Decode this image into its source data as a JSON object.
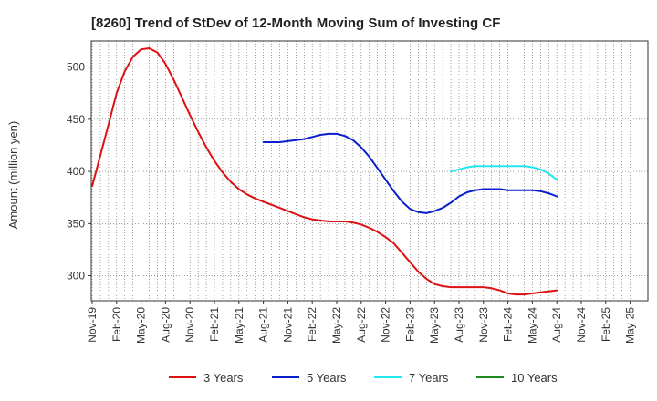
{
  "chart_data": {
    "type": "line",
    "title": "[8260]  Trend of StDev of 12-Month Moving Sum of Investing CF",
    "xlabel": "",
    "ylabel": "Amount (million yen)",
    "ylim": [
      276,
      525
    ],
    "yticks": [
      300,
      350,
      400,
      450,
      500
    ],
    "grid": true,
    "legend_position": "bottom",
    "categories": [
      "Nov-19",
      "Feb-20",
      "May-20",
      "Aug-20",
      "Nov-20",
      "Feb-21",
      "May-21",
      "Aug-21",
      "Nov-21",
      "Feb-22",
      "May-22",
      "Aug-22",
      "Nov-22",
      "Feb-23",
      "May-23",
      "Aug-23",
      "Nov-23",
      "Feb-24",
      "May-24",
      "Aug-24",
      "Nov-24",
      "Feb-25",
      "May-25"
    ],
    "series": [
      {
        "name": "3 Years",
        "color": "#dd1111",
        "points": [
          [
            "2019-11",
            386
          ],
          [
            "2019-12",
            415
          ],
          [
            "2020-01",
            445
          ],
          [
            "2020-02",
            475
          ],
          [
            "2020-03",
            496
          ],
          [
            "2020-04",
            510
          ],
          [
            "2020-05",
            517
          ],
          [
            "2020-06",
            518
          ],
          [
            "2020-07",
            514
          ],
          [
            "2020-08",
            503
          ],
          [
            "2020-09",
            488
          ],
          [
            "2020-10",
            471
          ],
          [
            "2020-11",
            454
          ],
          [
            "2020-12",
            438
          ],
          [
            "2021-01",
            423
          ],
          [
            "2021-02",
            410
          ],
          [
            "2021-03",
            399
          ],
          [
            "2021-04",
            390
          ],
          [
            "2021-05",
            383
          ],
          [
            "2021-06",
            378
          ],
          [
            "2021-07",
            374
          ],
          [
            "2021-08",
            371
          ],
          [
            "2021-09",
            368
          ],
          [
            "2021-10",
            365
          ],
          [
            "2021-11",
            362
          ],
          [
            "2021-12",
            359
          ],
          [
            "2022-01",
            356
          ],
          [
            "2022-02",
            354
          ],
          [
            "2022-03",
            353
          ],
          [
            "2022-04",
            352
          ],
          [
            "2022-05",
            352
          ],
          [
            "2022-06",
            352
          ],
          [
            "2022-07",
            351
          ],
          [
            "2022-08",
            349
          ],
          [
            "2022-09",
            346
          ],
          [
            "2022-10",
            342
          ],
          [
            "2022-11",
            337
          ],
          [
            "2022-12",
            331
          ],
          [
            "2023-01",
            322
          ],
          [
            "2023-02",
            313
          ],
          [
            "2023-03",
            304
          ],
          [
            "2023-04",
            297
          ],
          [
            "2023-05",
            292
          ],
          [
            "2023-06",
            290
          ],
          [
            "2023-07",
            289
          ],
          [
            "2023-08",
            289
          ],
          [
            "2023-09",
            289
          ],
          [
            "2023-10",
            289
          ],
          [
            "2023-11",
            289
          ],
          [
            "2023-12",
            288
          ],
          [
            "2024-01",
            286
          ],
          [
            "2024-02",
            283
          ],
          [
            "2024-03",
            282
          ],
          [
            "2024-04",
            282
          ],
          [
            "2024-05",
            283
          ],
          [
            "2024-06",
            284
          ],
          [
            "2024-07",
            285
          ],
          [
            "2024-08",
            286
          ]
        ]
      },
      {
        "name": "5 Years",
        "color": "#0a1fcc",
        "points": [
          [
            "2021-08",
            428
          ],
          [
            "2021-09",
            428
          ],
          [
            "2021-10",
            428
          ],
          [
            "2021-11",
            429
          ],
          [
            "2021-12",
            430
          ],
          [
            "2022-01",
            431
          ],
          [
            "2022-02",
            433
          ],
          [
            "2022-03",
            435
          ],
          [
            "2022-04",
            436
          ],
          [
            "2022-05",
            436
          ],
          [
            "2022-06",
            434
          ],
          [
            "2022-07",
            430
          ],
          [
            "2022-08",
            423
          ],
          [
            "2022-09",
            414
          ],
          [
            "2022-10",
            403
          ],
          [
            "2022-11",
            392
          ],
          [
            "2022-12",
            381
          ],
          [
            "2023-01",
            371
          ],
          [
            "2023-02",
            364
          ],
          [
            "2023-03",
            361
          ],
          [
            "2023-04",
            360
          ],
          [
            "2023-05",
            362
          ],
          [
            "2023-06",
            365
          ],
          [
            "2023-07",
            370
          ],
          [
            "2023-08",
            376
          ],
          [
            "2023-09",
            380
          ],
          [
            "2023-10",
            382
          ],
          [
            "2023-11",
            383
          ],
          [
            "2023-12",
            383
          ],
          [
            "2024-01",
            383
          ],
          [
            "2024-02",
            382
          ],
          [
            "2024-03",
            382
          ],
          [
            "2024-04",
            382
          ],
          [
            "2024-05",
            382
          ],
          [
            "2024-06",
            381
          ],
          [
            "2024-07",
            379
          ],
          [
            "2024-08",
            376
          ]
        ]
      },
      {
        "name": "7 Years",
        "color": "#22e6ee",
        "points": [
          [
            "2023-07",
            400
          ],
          [
            "2023-08",
            402
          ],
          [
            "2023-09",
            404
          ],
          [
            "2023-10",
            405
          ],
          [
            "2023-11",
            405
          ],
          [
            "2023-12",
            405
          ],
          [
            "2024-01",
            405
          ],
          [
            "2024-02",
            405
          ],
          [
            "2024-03",
            405
          ],
          [
            "2024-04",
            405
          ],
          [
            "2024-05",
            404
          ],
          [
            "2024-06",
            402
          ],
          [
            "2024-07",
            398
          ],
          [
            "2024-08",
            392
          ]
        ]
      },
      {
        "name": "10 Years",
        "color": "#1e8a1e",
        "points": []
      }
    ]
  }
}
